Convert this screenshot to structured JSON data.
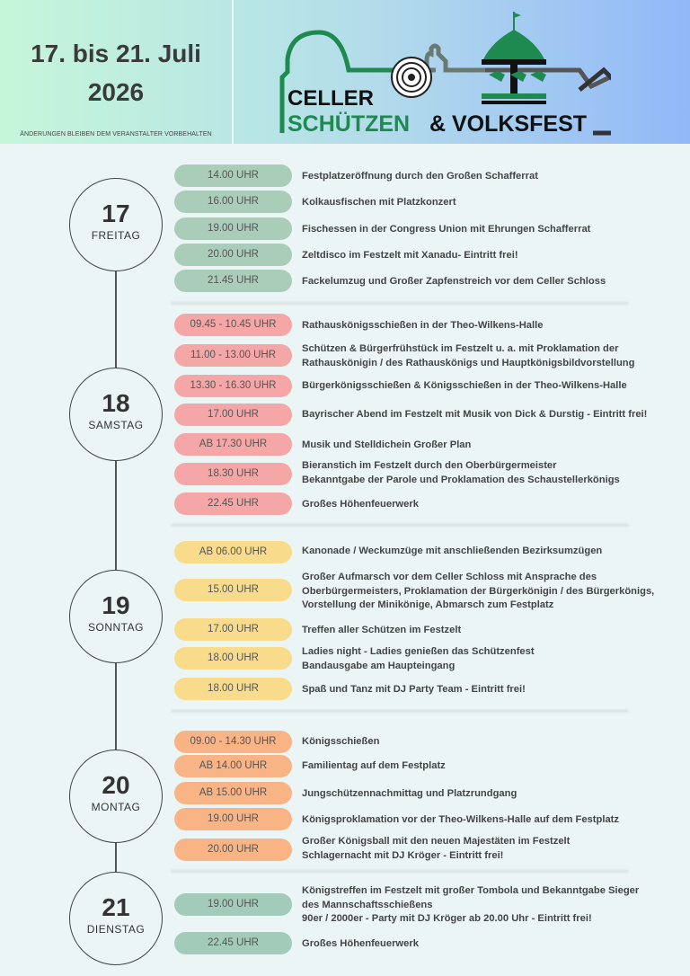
{
  "header": {
    "date_line1": "17. bis 21. Juli",
    "date_line2": "2026",
    "disclaimer": "ÄNDERUNGEN BLEIBEN DEM VERANSTALTER VORBEHALTEN",
    "logo": {
      "line1": "CELLER",
      "line2a": "SCHÜTZEN",
      "line2b": "& VOLKSFEST",
      "green": "#1e8a4f"
    }
  },
  "days": [
    {
      "number": "17",
      "weekday": "FREITAG",
      "color": "#a9cdb9",
      "events": [
        {
          "time": "14.00 UHR",
          "text": "Festplatzeröffnung durch den Großen Schafferrat"
        },
        {
          "time": "16.00 UHR",
          "text": "Kolkausfischen mit Platzkonzert"
        },
        {
          "time": "19.00 UHR",
          "text": "Fischessen in der Congress Union mit Ehrungen Schafferrat"
        },
        {
          "time": "20.00 UHR",
          "text": "Zeltdisco im Festzelt mit Xanadu- Eintritt frei!"
        },
        {
          "time": "21.45 UHR",
          "text": "Fackelumzug und Großer Zapfenstreich vor dem Celler Schloss"
        }
      ]
    },
    {
      "number": "18",
      "weekday": "SAMSTAG",
      "color": "#f5a6a6",
      "events": [
        {
          "time": "09.45 - 10.45 UHR",
          "text": "Rathauskönigsschießen in der Theo-Wilkens-Halle"
        },
        {
          "time": "11.00 - 13.00 UHR",
          "text": "Schützen & Bürgerfrühstück im Festzelt u. a. mit  Proklamation der\nRathauskönigin / des Rathauskönigs und Hauptkönigsbildvorstellung"
        },
        {
          "time": "13.30 - 16.30 UHR",
          "text": "Bürgerkönigsschießen & Königsschießen in der Theo-Wilkens-Halle"
        },
        {
          "time": "17.00 UHR",
          "text": "Bayrischer Abend im Festzelt mit Musik von Dick & Durstig - Eintritt frei!"
        },
        {
          "time": "AB 17.30 UHR",
          "text": "Musik und Stelldichein Großer Plan"
        },
        {
          "time": "18.30 UHR",
          "text": "Bieranstich im Festzelt durch den Oberbürgermeister\nBekanntgabe der Parole und Proklamation des Schaustellerkönigs"
        },
        {
          "time": "22.45 UHR",
          "text": "Großes Höhenfeuerwerk"
        }
      ]
    },
    {
      "number": "19",
      "weekday": "SONNTAG",
      "color": "#f8dc8c",
      "events": [
        {
          "time": "AB 06.00 UHR",
          "text": "Kanonade / Weckumzüge mit anschließenden Bezirksumzügen"
        },
        {
          "time": "15.00 UHR",
          "text": "Großer Aufmarsch vor dem Celler Schloss mit Ansprache des\nOberbürgermeisters, Proklamation der Bürgerkönigin / des Bürgerkönigs,\nVorstellung der Minikönige, Abmarsch zum Festplatz"
        },
        {
          "time": "17.00 UHR",
          "text": "Treffen aller Schützen im Festzelt"
        },
        {
          "time": "18.00 UHR",
          "text": "Ladies night - Ladies genießen das Schützenfest\nBandausgabe am Haupteingang"
        },
        {
          "time": "18.00 UHR",
          "text": "Spaß und Tanz mit DJ Party Team - Eintritt frei!"
        }
      ]
    },
    {
      "number": "20",
      "weekday": "MONTAG",
      "color": "#f9b486",
      "events": [
        {
          "time": "09.00 - 14.30 UHR",
          "text": "Königsschießen"
        },
        {
          "time": "AB 14.00 UHR",
          "text": "Familientag auf dem Festplatz"
        },
        {
          "time": "AB 15.00 UHR",
          "text": "Jungschützennachmittag und Platzrundgang"
        },
        {
          "time": "19.00 UHR",
          "text": "Königsproklamation vor der Theo-Wilkens-Halle auf dem Festplatz"
        },
        {
          "time": "20.00 UHR",
          "text": "Großer Königsball mit den neuen Majestäten im Festzelt\nSchlagernacht mit DJ Kröger - Eintritt frei!"
        }
      ]
    },
    {
      "number": "21",
      "weekday": "DIENSTAG",
      "color": "#a3cbba",
      "events": [
        {
          "time": "19.00 UHR",
          "text": "Königstreffen im Festzelt mit großer Tombola und Bekanntgabe Sieger\ndes Mannschaftsschießens\n90er / 2000er - Party mit DJ Kröger ab 20.00 Uhr - Eintritt frei!"
        },
        {
          "time": "22.45 UHR",
          "text": "Großes Höhenfeuerwerk"
        }
      ]
    }
  ]
}
